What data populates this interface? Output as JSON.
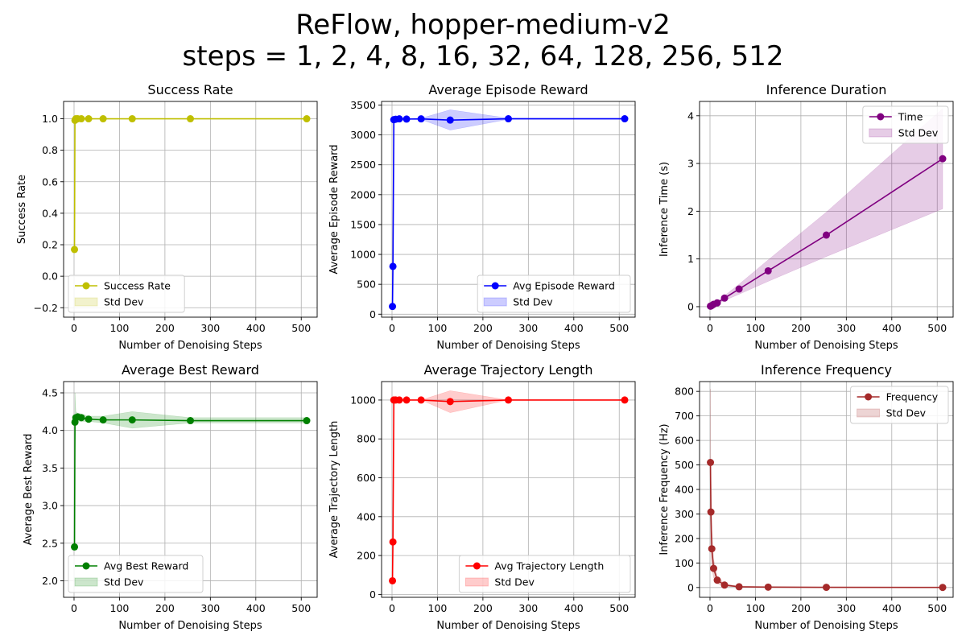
{
  "suptitle": {
    "line1": "ReFlow, hopper-medium-v2",
    "line2": "steps = 1, 2, 4, 8, 16, 32, 64, 128, 256, 512"
  },
  "chart_data": [
    {
      "type": "line",
      "title": "Success Rate",
      "xlabel": "Number of Denoising Steps",
      "ylabel": "Success Rate",
      "xlim": [
        -23,
        535
      ],
      "ylim": [
        -0.26,
        1.11
      ],
      "xticks": [
        0,
        100,
        200,
        300,
        400,
        500
      ],
      "yticks": [
        -0.2,
        0.0,
        0.2,
        0.4,
        0.6,
        0.8,
        1.0
      ],
      "ytick_labels": [
        "−0.2",
        "0.0",
        "0.2",
        "0.4",
        "0.6",
        "0.8",
        "1.0"
      ],
      "color": "#bfbf00",
      "grid": true,
      "legend": {
        "position": "lower-left",
        "entries": [
          "Success Rate",
          "Std Dev"
        ]
      },
      "series": [
        {
          "name": "Success Rate",
          "x": [
            1,
            2,
            4,
            8,
            16,
            32,
            64,
            128,
            256,
            512
          ],
          "y": [
            0.17,
            0.99,
            1.0,
            1.0,
            1.0,
            1.0,
            1.0,
            1.0,
            1.0,
            1.0
          ],
          "std_lower": [
            0.17,
            0.99,
            1.0,
            1.0,
            1.0,
            1.0,
            1.0,
            1.0,
            1.0,
            1.0
          ],
          "std_upper": [
            0.17,
            0.99,
            1.0,
            1.0,
            1.0,
            1.0,
            1.0,
            1.0,
            1.0,
            1.0
          ]
        }
      ]
    },
    {
      "type": "line",
      "title": "Average Episode Reward",
      "xlabel": "Number of Denoising Steps",
      "ylabel": "Average Episode Reward",
      "xlim": [
        -23,
        535
      ],
      "ylim": [
        -50,
        3560
      ],
      "xticks": [
        0,
        100,
        200,
        300,
        400,
        500
      ],
      "yticks": [
        0,
        500,
        1000,
        1500,
        2000,
        2500,
        3000,
        3500
      ],
      "ytick_labels": [
        "0",
        "500",
        "1000",
        "1500",
        "2000",
        "2500",
        "3000",
        "3500"
      ],
      "color": "#0000ff",
      "grid": true,
      "legend": {
        "position": "lower-right",
        "entries": [
          "Avg Episode Reward",
          "Std Dev"
        ]
      },
      "series": [
        {
          "name": "Avg Episode Reward",
          "x": [
            1,
            2,
            4,
            8,
            16,
            32,
            64,
            128,
            256,
            512
          ],
          "y": [
            130,
            800,
            3255,
            3262,
            3268,
            3265,
            3268,
            3248,
            3270,
            3270
          ],
          "std_lower": [
            130,
            800,
            3245,
            3255,
            3262,
            3258,
            3258,
            3080,
            3260,
            3262
          ],
          "std_upper": [
            130,
            800,
            3265,
            3270,
            3275,
            3272,
            3278,
            3420,
            3280,
            3278
          ]
        }
      ]
    },
    {
      "type": "line",
      "title": "Inference Duration",
      "xlabel": "Number of Denoising Steps",
      "ylabel": "Inference Time (s)",
      "xlim": [
        -23,
        535
      ],
      "ylim": [
        -0.22,
        4.3
      ],
      "xticks": [
        0,
        100,
        200,
        300,
        400,
        500
      ],
      "yticks": [
        0,
        1,
        2,
        3,
        4
      ],
      "ytick_labels": [
        "0",
        "1",
        "2",
        "3",
        "4"
      ],
      "color": "#800080",
      "grid": true,
      "legend": {
        "position": "upper-right",
        "entries": [
          "Time",
          "Std Dev"
        ]
      },
      "series": [
        {
          "name": "Time",
          "x": [
            1,
            2,
            4,
            8,
            16,
            32,
            64,
            128,
            256,
            512
          ],
          "y": [
            0.01,
            0.015,
            0.025,
            0.05,
            0.08,
            0.18,
            0.37,
            0.75,
            1.5,
            3.1
          ],
          "std_lower": [
            0.005,
            0.01,
            0.02,
            0.04,
            0.06,
            0.13,
            0.26,
            0.53,
            1.05,
            2.05
          ],
          "std_upper": [
            0.015,
            0.02,
            0.03,
            0.06,
            0.1,
            0.23,
            0.47,
            0.98,
            1.98,
            4.15
          ]
        }
      ]
    },
    {
      "type": "line",
      "title": "Average Best Reward",
      "xlabel": "Number of Denoising Steps",
      "ylabel": "Average Best Reward",
      "xlim": [
        -23,
        535
      ],
      "ylim": [
        1.78,
        4.65
      ],
      "xticks": [
        0,
        100,
        200,
        300,
        400,
        500
      ],
      "yticks": [
        2.0,
        2.5,
        3.0,
        3.5,
        4.0,
        4.5
      ],
      "ytick_labels": [
        "2.0",
        "2.5",
        "3.0",
        "3.5",
        "4.0",
        "4.5"
      ],
      "color": "#008000",
      "grid": true,
      "legend": {
        "position": "lower-left",
        "entries": [
          "Avg Best Reward",
          "Std Dev"
        ]
      },
      "series": [
        {
          "name": "Avg Best Reward",
          "x": [
            1,
            2,
            4,
            8,
            16,
            32,
            64,
            128,
            256,
            512
          ],
          "y": [
            2.45,
            4.11,
            4.17,
            4.18,
            4.17,
            4.15,
            4.14,
            4.14,
            4.13,
            4.13
          ],
          "std_lower": [
            2.45,
            3.75,
            4.1,
            4.12,
            4.12,
            4.12,
            4.1,
            4.03,
            4.1,
            4.1
          ],
          "std_upper": [
            2.45,
            4.5,
            4.25,
            4.23,
            4.22,
            4.19,
            4.19,
            4.25,
            4.17,
            4.17
          ]
        }
      ]
    },
    {
      "type": "line",
      "title": "Average Trajectory Length",
      "xlabel": "Number of Denoising Steps",
      "ylabel": "Average Trajectory Length",
      "xlim": [
        -23,
        535
      ],
      "ylim": [
        -15,
        1095
      ],
      "xticks": [
        0,
        100,
        200,
        300,
        400,
        500
      ],
      "yticks": [
        0,
        200,
        400,
        600,
        800,
        1000
      ],
      "ytick_labels": [
        "0",
        "200",
        "400",
        "600",
        "800",
        "1000"
      ],
      "color": "#ff0000",
      "grid": true,
      "legend": {
        "position": "lower-right",
        "entries": [
          "Avg Trajectory Length",
          "Std Dev"
        ]
      },
      "series": [
        {
          "name": "Avg Trajectory Length",
          "x": [
            1,
            2,
            4,
            8,
            16,
            32,
            64,
            128,
            256,
            512
          ],
          "y": [
            70,
            270,
            1000,
            1000,
            1000,
            1000,
            1000,
            992,
            1000,
            1000
          ],
          "std_lower": [
            70,
            270,
            1000,
            1000,
            1000,
            1000,
            1000,
            935,
            1000,
            1000
          ],
          "std_upper": [
            70,
            270,
            1000,
            1000,
            1000,
            1000,
            1000,
            1048,
            1000,
            1000
          ]
        }
      ]
    },
    {
      "type": "line",
      "title": "Inference Frequency",
      "xlabel": "Number of Denoising Steps",
      "ylabel": "Inference Frequency (Hz)",
      "xlim": [
        -23,
        535
      ],
      "ylim": [
        -40,
        840
      ],
      "xticks": [
        0,
        100,
        200,
        300,
        400,
        500
      ],
      "yticks": [
        0,
        100,
        200,
        300,
        400,
        500,
        600,
        700,
        800
      ],
      "ytick_labels": [
        "0",
        "100",
        "200",
        "300",
        "400",
        "500",
        "600",
        "700",
        "800"
      ],
      "color": "#a52a2a",
      "grid": true,
      "legend": {
        "position": "upper-right",
        "entries": [
          "Frequency",
          "Std Dev"
        ]
      },
      "series": [
        {
          "name": "Frequency",
          "x": [
            1,
            2,
            4,
            8,
            16,
            32,
            64,
            128,
            256,
            512
          ],
          "y": [
            510,
            308,
            158,
            78,
            30,
            10,
            3,
            1.5,
            0.8,
            0.3
          ],
          "std_lower": [
            210,
            150,
            80,
            40,
            15,
            5,
            1.5,
            0.7,
            0.4,
            0.1
          ],
          "std_upper": [
            810,
            465,
            235,
            115,
            45,
            15,
            5,
            2.5,
            1.2,
            0.5
          ]
        }
      ]
    }
  ]
}
